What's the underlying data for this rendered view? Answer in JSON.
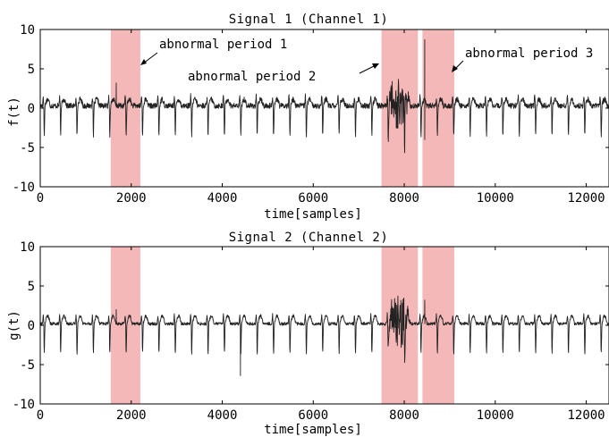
{
  "colors": {
    "signal": "#222222",
    "abnormal_band": "#f4b8b8",
    "axis": "#000000"
  },
  "chart_data": [
    {
      "type": "line",
      "title": "Signal 1 (Channel 1)",
      "xlabel": "time[samples]",
      "ylabel": "f(t)",
      "xlim": [
        0,
        12500
      ],
      "ylim": [
        -10,
        10
      ],
      "xticks": [
        0,
        2000,
        4000,
        6000,
        8000,
        10000,
        12000
      ],
      "xtick_labels": [
        "0",
        "2000",
        "4000",
        "6000",
        "8000",
        "10000",
        "12000"
      ],
      "yticks": [
        10,
        5,
        0,
        -5,
        -10
      ],
      "ytick_labels": [
        "10",
        "5",
        "0",
        "-5",
        "-10"
      ],
      "grid": false,
      "signal": {
        "baseline": 0.3,
        "beat_interval": 360,
        "first_beat": 80,
        "beat_dip": -4.3,
        "beat_peak": 1.3,
        "noise_amplitude": 0.35
      },
      "abnormal_periods": [
        {
          "label": "abnormal period 1",
          "start": 1550,
          "end": 2200
        },
        {
          "label": "abnormal period 2",
          "start": 7500,
          "end": 8300
        },
        {
          "label": "abnormal period 3",
          "start": 8400,
          "end": 9100
        }
      ],
      "spikes": [
        {
          "x": 1670,
          "y": 3.2
        },
        {
          "x": 8450,
          "y": 8.7
        },
        {
          "x": 8450,
          "y": -4.0
        }
      ],
      "noisy_burst": {
        "start": 7600,
        "end": 8150,
        "amplitude": 3.5
      },
      "annotations": [
        {
          "text": "abnormal period 1"
        },
        {
          "text": "abnormal period 2"
        },
        {
          "text": "abnormal period 3"
        }
      ]
    },
    {
      "type": "line",
      "title": "Signal 2 (Channel 2)",
      "xlabel": "time[samples]",
      "ylabel": "g(t)",
      "xlim": [
        0,
        12500
      ],
      "ylim": [
        -10,
        10
      ],
      "xticks": [
        0,
        2000,
        4000,
        6000,
        8000,
        10000,
        12000
      ],
      "xtick_labels": [
        "0",
        "2000",
        "4000",
        "6000",
        "8000",
        "10000",
        "12000"
      ],
      "yticks": [
        10,
        5,
        0,
        -5,
        -10
      ],
      "ytick_labels": [
        "10",
        "5",
        "0",
        "-5",
        "-10"
      ],
      "grid": false,
      "signal": {
        "baseline": 0.2,
        "beat_interval": 360,
        "first_beat": 80,
        "beat_dip": -4.2,
        "beat_peak": 1.2,
        "noise_amplitude": 0.2
      },
      "abnormal_periods": [
        {
          "start": 1550,
          "end": 2200
        },
        {
          "start": 7500,
          "end": 8300
        },
        {
          "start": 8400,
          "end": 9100
        }
      ],
      "spikes": [
        {
          "x": 1670,
          "y": 2.0
        },
        {
          "x": 8450,
          "y": 3.2
        },
        {
          "x": 4400,
          "y": -6.4
        }
      ],
      "noisy_burst": {
        "start": 7600,
        "end": 8150,
        "amplitude": 3.8
      },
      "annotations": []
    }
  ]
}
